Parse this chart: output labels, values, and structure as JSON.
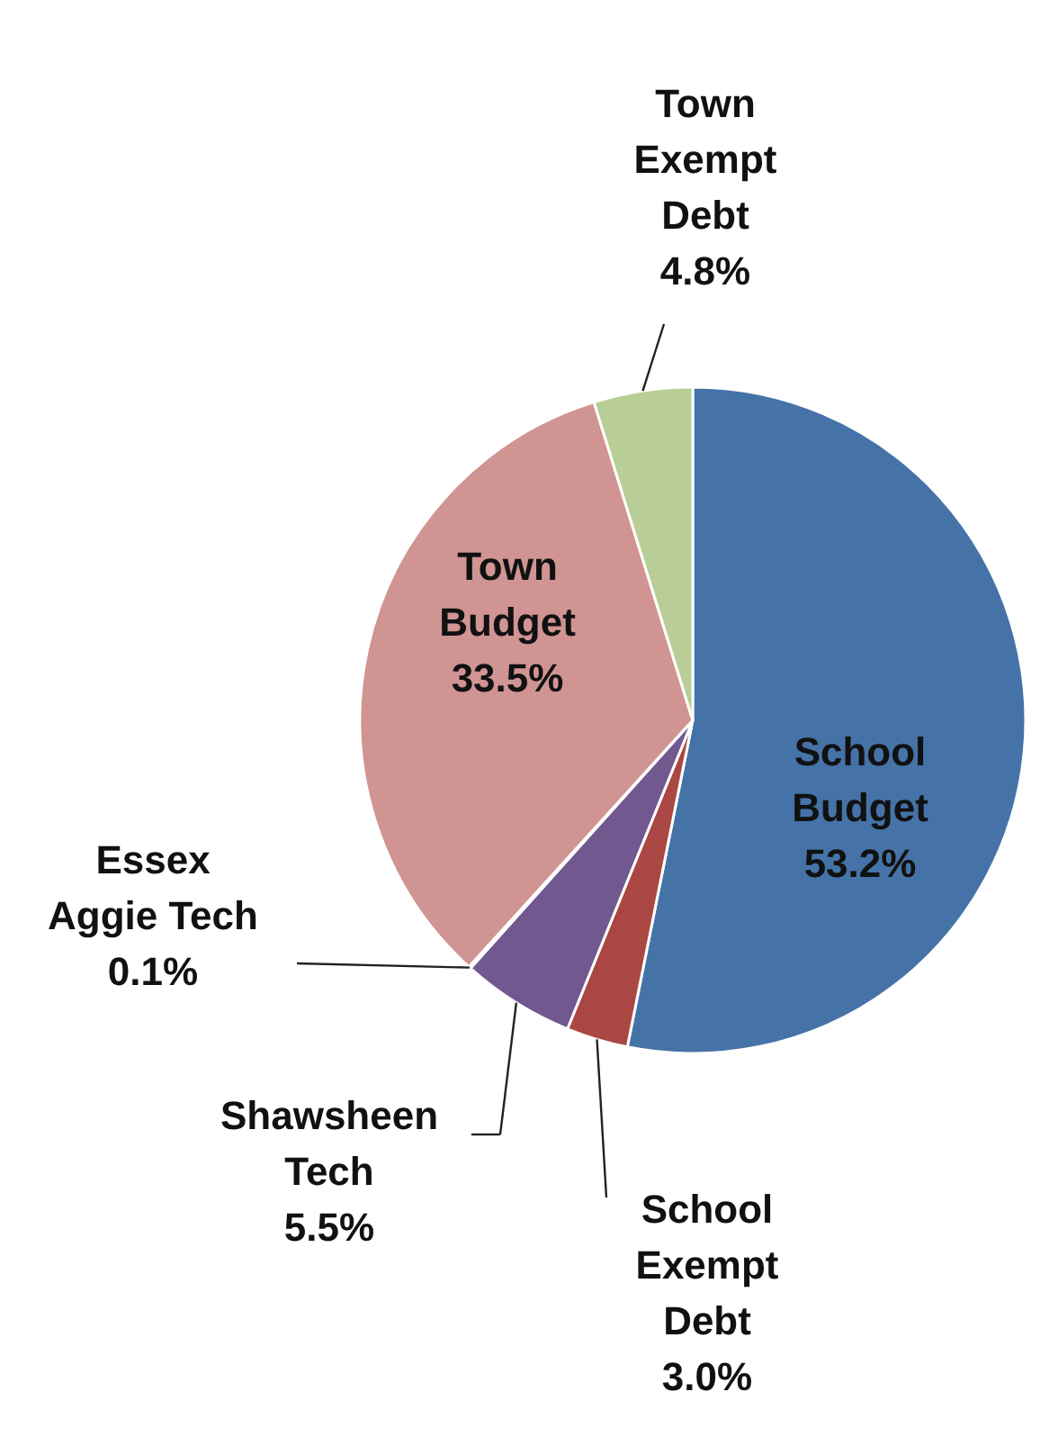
{
  "chart_data": {
    "type": "pie",
    "categories": [
      "School Budget",
      "School Exempt Debt",
      "Shawsheen Tech",
      "Essex Aggie Tech",
      "Town Budget",
      "Town Exempt Debt"
    ],
    "values": [
      53.2,
      3.0,
      5.5,
      0.1,
      33.5,
      4.8
    ],
    "colors": [
      "#4573a7",
      "#aa4643",
      "#71588f",
      "#4198af",
      "#d09493",
      "#b9cd96"
    ],
    "value_labels": [
      "53.2%",
      "3.0%",
      "5.5%",
      "0.1%",
      "33.5%",
      "4.8%"
    ]
  }
}
